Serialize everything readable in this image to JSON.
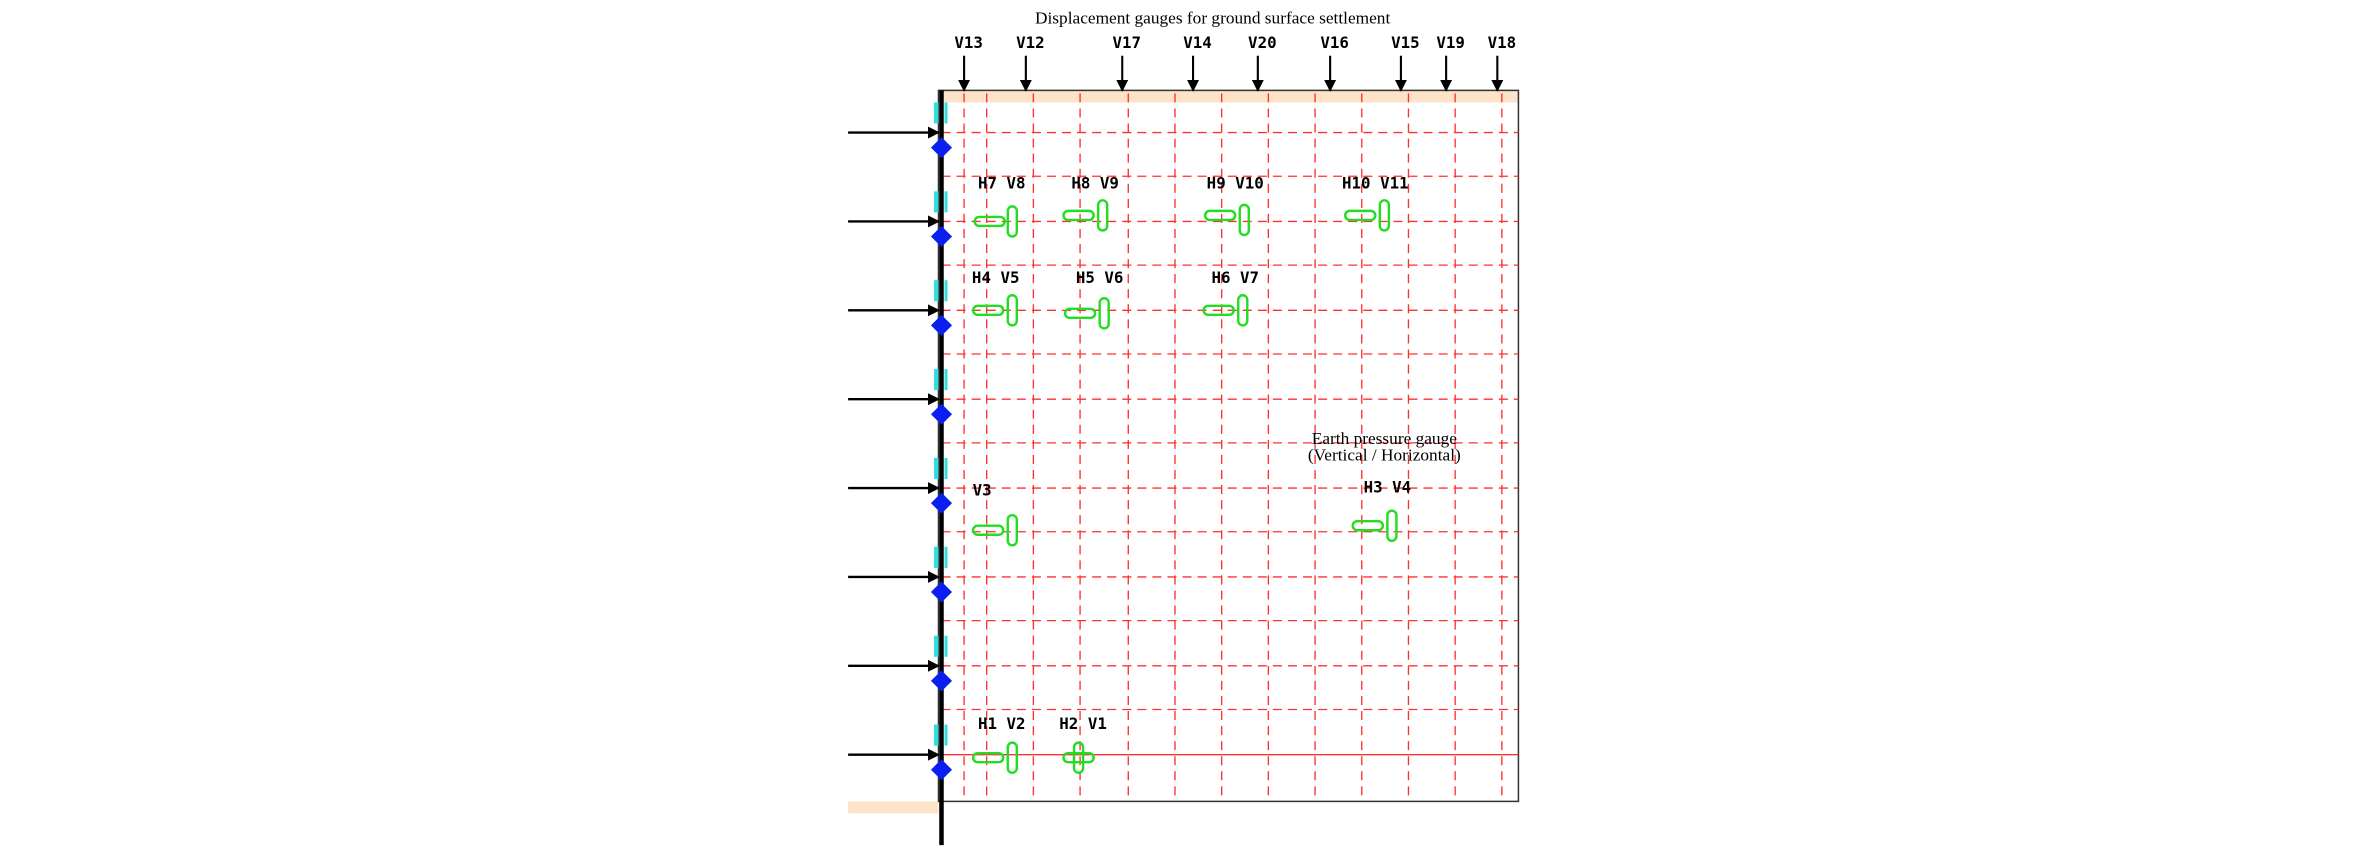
{
  "title": "Displacement gauges for ground surface settlement",
  "surface_gauges": [
    "V13",
    "V12",
    "V17",
    "V14",
    "V20",
    "V16",
    "V15",
    "V19",
    "V18"
  ],
  "legend": {
    "line1": "Earth pressure gauge",
    "line2": "(Vertical / Horizontal)"
  },
  "gauges": [
    {
      "label": "H7 V8"
    },
    {
      "label": "H8 V9"
    },
    {
      "label": "H9 V10"
    },
    {
      "label": "H10 V11"
    },
    {
      "label": "H4 V5"
    },
    {
      "label": "H5 V6"
    },
    {
      "label": "H6 V7"
    },
    {
      "label": "V3"
    },
    {
      "label": "H3 V4"
    },
    {
      "label": "H1 V2"
    },
    {
      "label": "H2 V1"
    }
  ]
}
